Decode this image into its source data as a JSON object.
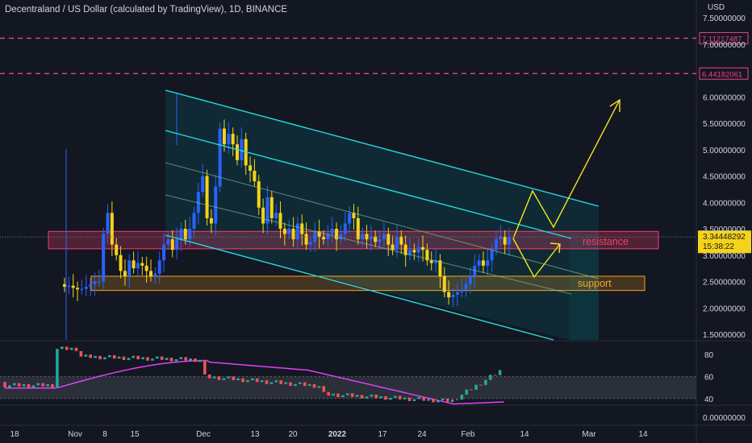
{
  "header": {
    "title": "Decentraland / US Dollar (calculated by TradingView), 1D, BINANCE",
    "currency": "USD"
  },
  "colors": {
    "background": "#131722",
    "bull": "#2962ff",
    "bear": "#f5d31a",
    "channel": "#26d9e0",
    "resistance": "#f23f6b",
    "support": "#f5a623",
    "rsi_line": "#e040fb",
    "arrow": "#f5e51e",
    "level": "#f23f8b"
  },
  "chart_data": [
    {
      "type": "candlestick",
      "symbol": "MANA/USD",
      "timeframe": "1D",
      "ylim": [
        1.45,
        7.6
      ],
      "price_ticks": [
        "7.50000000",
        "7.00000000",
        "6.00000000",
        "5.50000000",
        "5.00000000",
        "4.50000000",
        "4.00000000",
        "3.50000000",
        "3.00000000",
        "2.50000000",
        "2.00000000",
        "1.50000000"
      ],
      "x_ticks": [
        "18",
        "Nov",
        "8",
        "15",
        "Dec",
        "13",
        "20",
        "2022",
        "17",
        "24",
        "Feb",
        "14",
        "Mar",
        "14"
      ],
      "horizontal_levels": [
        {
          "label": "7.11217487",
          "value": 7.112
        },
        {
          "label": "6.44182061",
          "value": 6.442
        }
      ],
      "current_price": {
        "label": "3.34448292",
        "countdown": "15:38:22",
        "value": 3.344
      },
      "zones": [
        {
          "name": "resistance",
          "label": "resistance",
          "low": 3.12,
          "high": 3.45
        },
        {
          "name": "support",
          "label": "support",
          "low": 2.33,
          "high": 2.6
        }
      ],
      "candle_closes": [
        2.4,
        2.42,
        2.38,
        2.35,
        2.36,
        2.4,
        2.45,
        2.5,
        2.5,
        3.4,
        3.8,
        3.2,
        3.0,
        2.7,
        2.6,
        2.9,
        2.75,
        2.85,
        2.8,
        2.7,
        2.6,
        2.65,
        2.9,
        3.2,
        3.3,
        3.1,
        3.3,
        3.5,
        3.3,
        3.5,
        3.8,
        4.2,
        4.5,
        3.7,
        3.6,
        4.3,
        5.4,
        5.1,
        5.3,
        5.1,
        4.8,
        5.2,
        4.7,
        4.6,
        4.4,
        3.9,
        3.6,
        4.1,
        3.7,
        3.8,
        3.5,
        3.4,
        3.5,
        3.3,
        3.6,
        3.4,
        3.2,
        3.25,
        3.45,
        3.35,
        3.3,
        3.4,
        3.5,
        3.3,
        3.4,
        3.6,
        3.8,
        3.7,
        3.3,
        3.4,
        3.3,
        3.35,
        3.25,
        3.3,
        3.4,
        3.2,
        3.1,
        3.35,
        3.2,
        3.0,
        3.1,
        3.05,
        3.15,
        3.1,
        2.9,
        2.85,
        2.9,
        2.6,
        2.3,
        2.2,
        2.25,
        2.3,
        2.35,
        2.45,
        2.6,
        2.8,
        2.9,
        2.8,
        2.9,
        3.1,
        3.3,
        3.35,
        3.2,
        3.34
      ]
    },
    {
      "type": "line",
      "name": "RSI",
      "ylim": [
        33,
        92
      ],
      "y_ticks": [
        "80",
        "60",
        "40"
      ],
      "band": [
        40,
        60
      ],
      "x_ticks": [
        "18",
        "Nov",
        "8",
        "15",
        "Dec",
        "13",
        "20",
        "2022",
        "17",
        "24",
        "Feb",
        "14",
        "Mar",
        "14"
      ],
      "zero_label": "0.00000000"
    }
  ]
}
